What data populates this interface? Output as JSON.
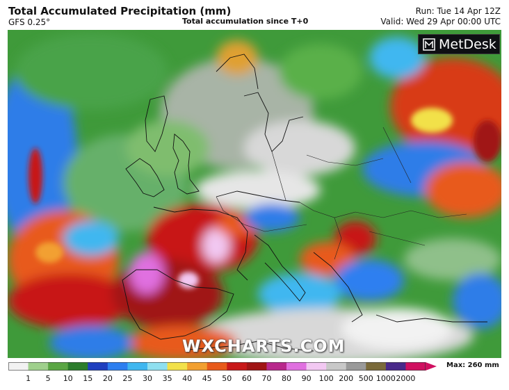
{
  "header": {
    "title": "Total Accumulated Precipitation (mm)",
    "model": "GFS 0.25°",
    "subtitle": "Total accumulation since T+0",
    "run": "Run: Tue 14 Apr 12Z",
    "valid": "Valid: Wed 29 Apr 00:00 UTC"
  },
  "logo": {
    "text": "MetDesk"
  },
  "watermark": "WXCHARTS.COM",
  "legend": {
    "max_label": "Max: 260 mm",
    "ticks": [
      "1",
      "5",
      "10",
      "15",
      "20",
      "25",
      "30",
      "35",
      "40",
      "45",
      "50",
      "60",
      "70",
      "80",
      "90",
      "100",
      "200",
      "500",
      "1000",
      "2000"
    ],
    "colors": [
      "#f2f2f2",
      "#9fd08c",
      "#5aa644",
      "#2c7d2c",
      "#1f3fbf",
      "#2d7ff0",
      "#3fb7f0",
      "#8fe0f0",
      "#f2e14a",
      "#f2a030",
      "#e85a1a",
      "#c81818",
      "#a01414",
      "#b8288c",
      "#e070e0",
      "#f2c8f2",
      "#c8c8c8",
      "#9a9a9a",
      "#7a6a3a",
      "#4a2a8a",
      "#d01060"
    ]
  }
}
